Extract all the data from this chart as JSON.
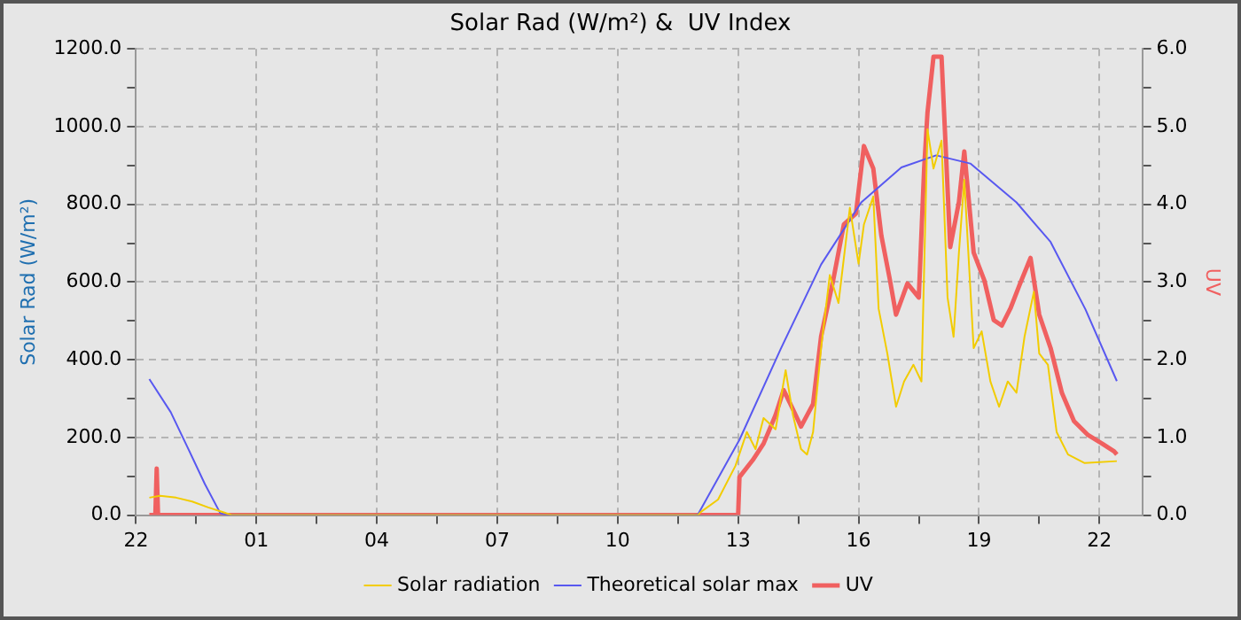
{
  "chart_data": {
    "type": "line",
    "title": "Solar Rad (W/m²) &  UV Index",
    "ylabel": "Solar Rad (W/m²)",
    "y2label": "UV",
    "xlim": [
      "--06-01T22:00",
      "--06-02T23:04"
    ],
    "xticks": [
      {
        "value": "--06-01T22:00",
        "label": "22"
      },
      {
        "value": "--06-01T23:30",
        "label": null
      },
      {
        "value": "--06-02T01:00",
        "label": "01"
      },
      {
        "value": "--06-02T02:30",
        "label": null
      },
      {
        "value": "--06-02T04:00",
        "label": "04"
      },
      {
        "value": "--06-02T05:30",
        "label": null
      },
      {
        "value": "--06-02T07:00",
        "label": "07"
      },
      {
        "value": "--06-02T08:30",
        "label": null
      },
      {
        "value": "--06-02T10:00",
        "label": "10"
      },
      {
        "value": "--06-02T11:30",
        "label": null
      },
      {
        "value": "--06-02T13:00",
        "label": "13"
      },
      {
        "value": "--06-02T14:30",
        "label": null
      },
      {
        "value": "--06-02T16:00",
        "label": "16"
      },
      {
        "value": "--06-02T17:30",
        "label": null
      },
      {
        "value": "--06-02T19:00",
        "label": "19"
      },
      {
        "value": "--06-02T20:30",
        "label": null
      },
      {
        "value": "--06-02T22:00",
        "label": "22"
      }
    ],
    "ylim": [
      0,
      1200
    ],
    "yticks": [
      {
        "value": 0,
        "label": "0.0"
      },
      {
        "value": 100,
        "label": null
      },
      {
        "value": 200,
        "label": "200.0"
      },
      {
        "value": 300,
        "label": null
      },
      {
        "value": 400,
        "label": "400.0"
      },
      {
        "value": 500,
        "label": null
      },
      {
        "value": 600,
        "label": "600.0"
      },
      {
        "value": 700,
        "label": null
      },
      {
        "value": 800,
        "label": "800.0"
      },
      {
        "value": 900,
        "label": null
      },
      {
        "value": 1000,
        "label": "1000.0"
      },
      {
        "value": 1100,
        "label": null
      },
      {
        "value": 1200,
        "label": "1200.0"
      }
    ],
    "y2lim": [
      0,
      6
    ],
    "y2ticks": [
      {
        "value": 0,
        "label": "0.0"
      },
      {
        "value": 0.5,
        "label": null
      },
      {
        "value": 1,
        "label": "1.0"
      },
      {
        "value": 1.5,
        "label": null
      },
      {
        "value": 2,
        "label": "2.0"
      },
      {
        "value": 2.5,
        "label": null
      },
      {
        "value": 3,
        "label": "3.0"
      },
      {
        "value": 3.5,
        "label": null
      },
      {
        "value": 4,
        "label": "4.0"
      },
      {
        "value": 4.5,
        "label": null
      },
      {
        "value": 5,
        "label": "5.0"
      },
      {
        "value": 5.5,
        "label": null
      },
      {
        "value": 6,
        "label": "6.0"
      }
    ],
    "grid": true,
    "legend": "bottom",
    "marker": "none",
    "line_style": "solid",
    "series": [
      {
        "name": "Solar radiation",
        "color": "#f2cc00",
        "x": [
          "--06-01T22:20",
          "--06-01T22:36",
          "--06-01T23:00",
          "--06-01T23:24",
          "--06-01T23:48",
          "--06-02T00:06",
          "--06-02T00:24",
          "--06-02T12:00",
          "--06-02T12:04",
          "--06-02T12:30",
          "--06-02T12:56",
          "--06-02T13:13",
          "--06-02T13:26",
          "--06-02T13:38",
          "--06-02T13:56",
          "--06-02T14:11",
          "--06-02T14:22",
          "--06-02T14:34",
          "--06-02T14:43",
          "--06-02T14:52",
          "--06-02T15:04",
          "--06-02T15:17",
          "--06-02T15:30",
          "--06-02T15:47",
          "--06-02T16:00",
          "--06-02T16:08",
          "--06-02T16:22",
          "--06-02T16:30",
          "--06-02T16:43",
          "--06-02T16:56",
          "--06-02T17:08",
          "--06-02T17:22",
          "--06-02T17:34",
          "--06-02T17:43",
          "--06-02T17:52",
          "--06-02T18:04",
          "--06-02T18:13",
          "--06-02T18:22",
          "--06-02T18:30",
          "--06-02T18:38",
          "--06-02T18:52",
          "--06-02T19:04",
          "--06-02T19:17",
          "--06-02T19:30",
          "--06-02T19:43",
          "--06-02T19:56",
          "--06-02T20:08",
          "--06-02T20:22",
          "--06-02T20:30",
          "--06-02T20:43",
          "--06-02T20:56",
          "--06-02T21:13",
          "--06-02T21:38",
          "--06-02T22:26"
        ],
        "values": [
          45,
          50,
          45,
          35,
          20,
          10,
          0,
          0,
          8,
          40,
          127,
          214,
          170,
          250,
          221,
          373,
          257,
          170,
          156,
          214,
          430,
          618,
          546,
          791,
          647,
          748,
          820,
          531,
          416,
          279,
          344,
          387,
          344,
          993,
          892,
          964,
          560,
          459,
          676,
          863,
          430,
          473,
          344,
          279,
          344,
          315,
          459,
          575,
          416,
          387,
          214,
          156,
          134,
          139
        ]
      },
      {
        "name": "Theoretical solar max",
        "color": "#5858f0",
        "x": [
          "--06-01T22:20",
          "--06-01T22:52",
          "--06-01T23:17",
          "--06-01T23:43",
          "--06-02T00:06",
          "--06-02T00:16",
          "--06-02T11:54",
          "--06-02T12:00",
          "--06-02T13:02",
          "--06-02T14:04",
          "--06-02T15:04",
          "--06-02T16:04",
          "--06-02T17:04",
          "--06-02T17:56",
          "--06-02T18:47",
          "--06-02T19:56",
          "--06-02T20:47",
          "--06-02T21:39",
          "--06-02T22:26"
        ],
        "values": [
          350,
          265,
          175,
          80,
          5,
          0,
          0,
          2,
          194,
          429,
          645,
          805,
          895,
          926,
          905,
          805,
          703,
          530,
          345
        ]
      },
      {
        "name": "UV",
        "color": "#f06060",
        "axis": "y2",
        "x": [
          "--06-01T22:20",
          "--06-01T22:29",
          "--06-01T22:31",
          "--06-01T22:33",
          "--06-02T13:00",
          "--06-02T13:02",
          "--06-02T13:22",
          "--06-02T13:38",
          "--06-02T13:56",
          "--06-02T14:08",
          "--06-02T14:22",
          "--06-02T14:34",
          "--06-02T14:52",
          "--06-02T15:04",
          "--06-02T15:22",
          "--06-02T15:38",
          "--06-02T15:56",
          "--06-02T16:08",
          "--06-02T16:22",
          "--06-02T16:34",
          "--06-02T16:47",
          "--06-02T16:56",
          "--06-02T17:13",
          "--06-02T17:30",
          "--06-02T17:38",
          "--06-02T17:43",
          "--06-02T17:52",
          "--06-02T18:04",
          "--06-02T18:17",
          "--06-02T18:30",
          "--06-02T18:38",
          "--06-02T18:52",
          "--06-02T19:08",
          "--06-02T19:22",
          "--06-02T19:34",
          "--06-02T19:47",
          "--06-02T20:00",
          "--06-02T20:17",
          "--06-02T20:30",
          "--06-02T20:47",
          "--06-02T21:04",
          "--06-02T21:22",
          "--06-02T21:43",
          "--06-02T22:04",
          "--06-02T22:22",
          "--06-02T22:26"
        ],
        "values": [
          0,
          0,
          0.6,
          0,
          0,
          0.49,
          0.71,
          0.92,
          1.29,
          1.61,
          1.36,
          1.14,
          1.43,
          2.3,
          3.02,
          3.74,
          3.88,
          4.75,
          4.46,
          3.6,
          3.02,
          2.58,
          2.98,
          2.8,
          4.46,
          5.18,
          5.9,
          5.9,
          3.45,
          4.03,
          4.68,
          3.38,
          3.02,
          2.51,
          2.44,
          2.66,
          2.95,
          3.31,
          2.58,
          2.15,
          1.57,
          1.21,
          1.03,
          0.92,
          0.82,
          0.78
        ]
      }
    ]
  }
}
